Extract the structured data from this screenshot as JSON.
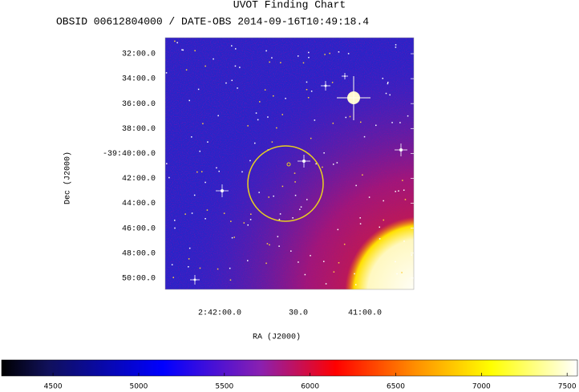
{
  "chart_data": {
    "type": "image",
    "title": "UVOT Finding Chart",
    "subtitle": "OBSID 00612804000 / DATE-OBS 2014-09-16T10:49:18.4",
    "xlabel": "RA (J2000)",
    "ylabel": "Dec (J2000)",
    "xticks": [
      "2:42:00.0",
      "30.0",
      "41:00.0"
    ],
    "yticks": [
      "32:00.0",
      "34:00.0",
      "36:00.0",
      "38:00.0",
      "-39:40:00.0",
      "42:00.0",
      "44:00.0",
      "46:00.0",
      "48:00.0",
      "50:00.0"
    ],
    "colorbar": {
      "lim": [
        4200,
        7560
      ],
      "ticks": [
        4500,
        5000,
        5500,
        6000,
        6500,
        7000,
        7500
      ]
    }
  }
}
